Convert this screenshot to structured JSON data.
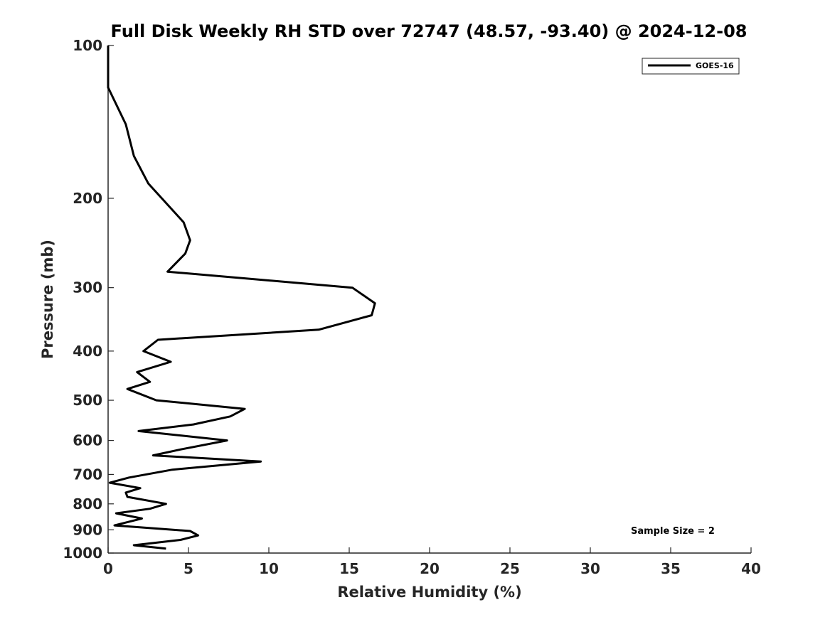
{
  "chart_data": {
    "type": "line",
    "title": "Full Disk Weekly RH STD over 72747 (48.57, -93.40) @ 2024-12-08",
    "xlabel": "Relative Humidity (%)",
    "ylabel": "Pressure (mb)",
    "xlim": [
      0,
      40
    ],
    "ylim": [
      100,
      1000
    ],
    "y_scale": "log",
    "y_reversed": true,
    "grid": false,
    "legend_position": "top-right",
    "x_ticks": [
      "0",
      "5",
      "10",
      "15",
      "20",
      "25",
      "30",
      "35",
      "40"
    ],
    "y_ticks": [
      "100",
      "200",
      "300",
      "400",
      "500",
      "600",
      "700",
      "800",
      "900",
      "1000"
    ],
    "series": [
      {
        "name": "GOES-16",
        "color": "#000000",
        "points": [
          [
            0.0,
            100
          ],
          [
            0.0,
            121
          ],
          [
            1.1,
            143
          ],
          [
            1.6,
            165
          ],
          [
            2.5,
            187
          ],
          [
            4.7,
            223
          ],
          [
            5.1,
            242
          ],
          [
            4.8,
            257
          ],
          [
            3.7,
            279
          ],
          [
            15.2,
            300
          ],
          [
            16.6,
            322
          ],
          [
            16.4,
            340
          ],
          [
            13.1,
            363
          ],
          [
            3.1,
            380
          ],
          [
            2.2,
            400
          ],
          [
            3.9,
            420
          ],
          [
            1.8,
            440
          ],
          [
            2.6,
            460
          ],
          [
            1.2,
            475
          ],
          [
            3.0,
            500
          ],
          [
            8.5,
            520
          ],
          [
            7.6,
            538
          ],
          [
            5.3,
            558
          ],
          [
            1.9,
            575
          ],
          [
            7.4,
            600
          ],
          [
            4.5,
            625
          ],
          [
            2.8,
            642
          ],
          [
            9.5,
            660
          ],
          [
            4.0,
            685
          ],
          [
            1.3,
            710
          ],
          [
            0.1,
            727
          ],
          [
            2.0,
            745
          ],
          [
            1.1,
            760
          ],
          [
            1.2,
            775
          ],
          [
            3.6,
            800
          ],
          [
            2.6,
            818
          ],
          [
            0.5,
            835
          ],
          [
            2.1,
            855
          ],
          [
            0.4,
            882
          ],
          [
            5.1,
            905
          ],
          [
            5.6,
            923
          ],
          [
            4.5,
            942
          ],
          [
            1.6,
            965
          ],
          [
            3.6,
            980
          ]
        ]
      }
    ],
    "annotations": [
      "Sample Size = 2"
    ]
  }
}
